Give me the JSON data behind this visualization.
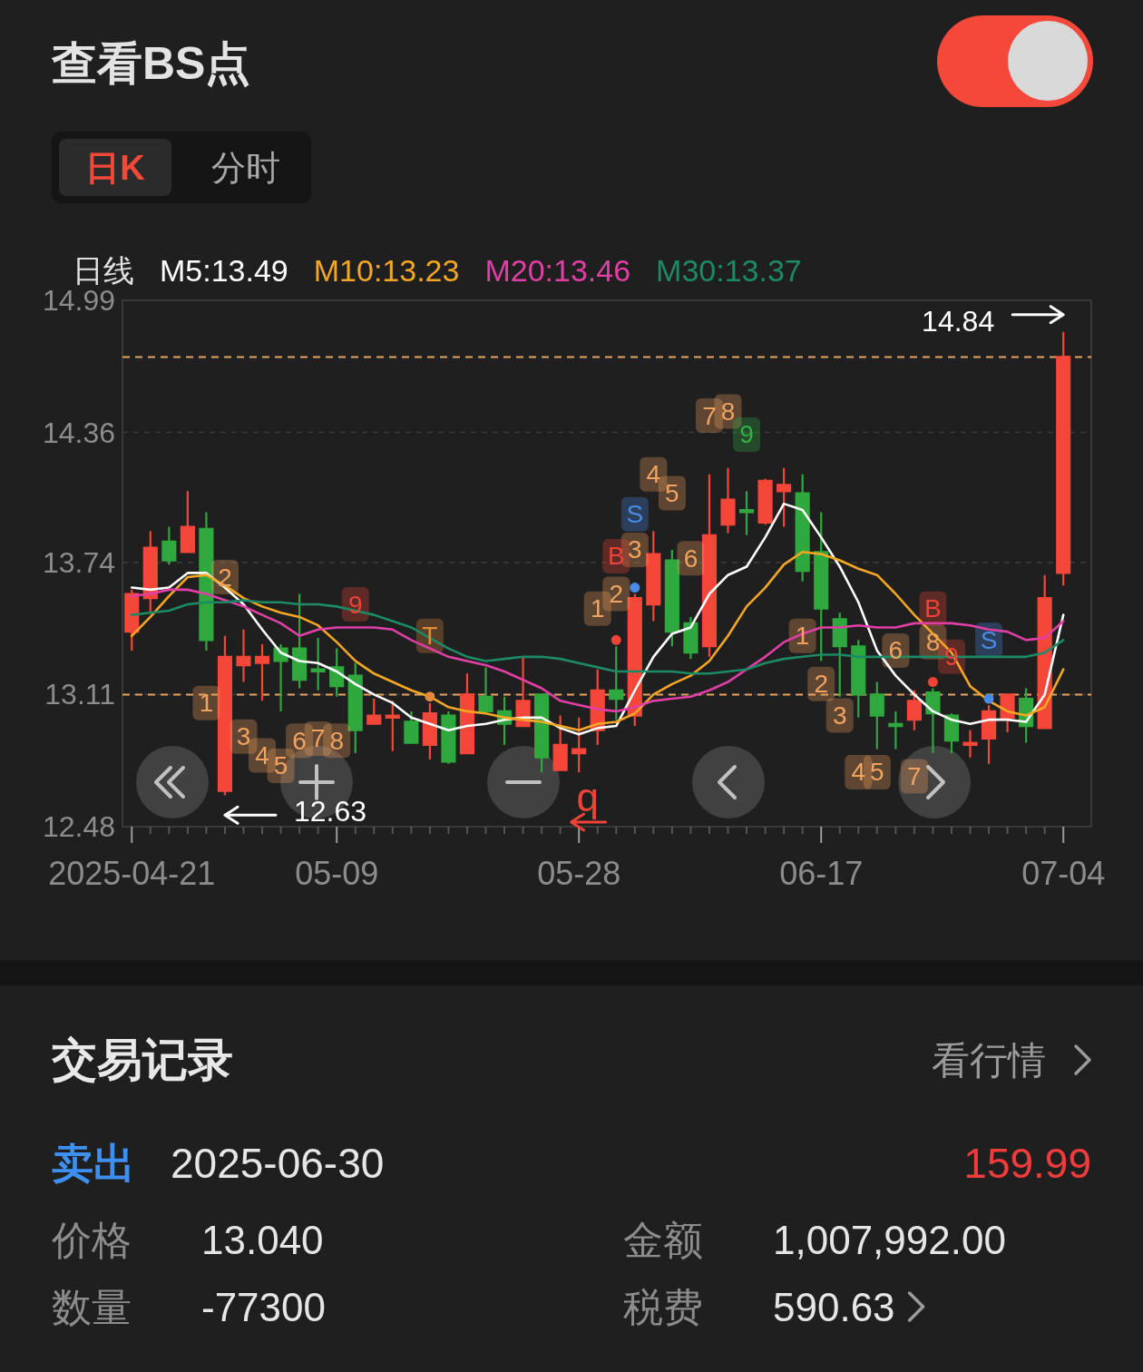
{
  "chart_data": [
    {
      "type": "other",
      "title": "查看BS点",
      "annotations": [
        "日K",
        "分时"
      ]
    },
    {
      "type": "candlestick",
      "legend_title": "日线",
      "legend": "top left",
      "grid": "y",
      "categories": [
        "2025-04-21",
        null,
        null,
        null,
        null,
        null,
        null,
        null,
        null,
        null,
        null,
        "05-09",
        null,
        null,
        null,
        null,
        null,
        null,
        null,
        null,
        null,
        null,
        null,
        null,
        "05-28",
        null,
        null,
        null,
        null,
        null,
        null,
        null,
        null,
        null,
        null,
        null,
        null,
        "06-17",
        null,
        null,
        null,
        null,
        null,
        null,
        null,
        null,
        null,
        null,
        null,
        null,
        "07-04"
      ],
      "ylim": [
        12.48,
        14.99
      ],
      "yticks": [
        12.48,
        13.11,
        13.74,
        14.36,
        14.99
      ],
      "ohlc": [
        [
          13.41,
          13.61,
          13.32,
          13.59
        ],
        [
          13.57,
          13.89,
          13.5,
          13.81
        ],
        [
          13.84,
          13.91,
          13.73,
          13.75
        ],
        [
          13.79,
          14.08,
          13.79,
          13.91
        ],
        [
          13.9,
          13.98,
          13.32,
          13.37
        ],
        [
          12.65,
          13.39,
          12.63,
          13.29
        ],
        [
          13.25,
          13.42,
          13.17,
          13.29
        ],
        [
          13.26,
          13.35,
          13.08,
          13.29
        ],
        [
          13.33,
          13.35,
          13.03,
          13.27
        ],
        [
          13.33,
          13.59,
          13.14,
          13.18
        ],
        [
          13.23,
          13.38,
          13.13,
          13.22
        ],
        [
          13.24,
          13.33,
          13.1,
          13.15
        ],
        [
          13.2,
          13.26,
          12.83,
          12.94
        ],
        [
          12.97,
          13.09,
          12.97,
          13.01
        ],
        [
          13.0,
          13.08,
          12.84,
          13.01
        ],
        [
          12.98,
          13.03,
          12.88,
          12.88
        ],
        [
          12.87,
          13.07,
          12.8,
          13.02
        ],
        [
          13.01,
          13.03,
          12.78,
          12.79
        ],
        [
          12.83,
          13.21,
          12.83,
          13.11
        ],
        [
          13.1,
          13.24,
          13.03,
          13.03
        ],
        [
          13.03,
          13.1,
          12.87,
          12.97
        ],
        [
          12.96,
          13.29,
          12.96,
          13.08
        ],
        [
          13.11,
          13.11,
          12.74,
          12.81
        ],
        [
          12.75,
          13.01,
          12.75,
          12.87
        ],
        [
          12.83,
          13.0,
          12.74,
          12.85
        ],
        [
          12.94,
          13.23,
          12.87,
          13.13
        ],
        [
          13.13,
          13.34,
          12.99,
          13.09
        ],
        [
          13.01,
          13.59,
          12.96,
          13.57
        ],
        [
          13.54,
          13.89,
          13.46,
          13.78
        ],
        [
          13.75,
          13.8,
          13.34,
          13.41
        ],
        [
          13.45,
          13.48,
          13.28,
          13.31
        ],
        [
          13.34,
          14.16,
          13.29,
          13.87
        ],
        [
          13.92,
          14.19,
          13.88,
          14.04
        ],
        [
          13.99,
          14.08,
          13.87,
          13.98
        ],
        [
          13.93,
          14.14,
          13.92,
          14.13
        ],
        [
          14.08,
          14.19,
          13.91,
          14.11
        ],
        [
          14.07,
          14.16,
          13.65,
          13.7
        ],
        [
          13.79,
          13.98,
          13.27,
          13.52
        ],
        [
          13.47,
          13.5,
          13.1,
          13.34
        ],
        [
          13.34,
          13.37,
          13.0,
          13.11
        ],
        [
          13.11,
          13.17,
          12.85,
          13.01
        ],
        [
          12.97,
          13.03,
          12.85,
          12.96
        ],
        [
          12.99,
          13.13,
          12.94,
          13.08
        ],
        [
          13.12,
          13.14,
          12.83,
          13.02
        ],
        [
          13.01,
          13.02,
          12.83,
          12.89
        ],
        [
          12.87,
          12.94,
          12.81,
          12.88
        ],
        [
          12.9,
          13.06,
          12.78,
          13.03
        ],
        [
          13.0,
          13.11,
          12.93,
          13.11
        ],
        [
          13.09,
          13.14,
          12.88,
          12.96
        ],
        [
          12.95,
          13.68,
          12.95,
          13.57
        ],
        [
          13.69,
          14.84,
          13.63,
          14.72
        ]
      ],
      "colors": [
        "#f4473a",
        "#f4473a",
        "#2fa83d",
        "#f4473a",
        "#2fa83d",
        "#f4473a",
        "#f4473a",
        "#f4473a",
        "#2fa83d",
        "#2fa83d",
        "#2fa83d",
        "#2fa83d",
        "#2fa83d",
        "#f4473a",
        "#f4473a",
        "#2fa83d",
        "#f4473a",
        "#2fa83d",
        "#f4473a",
        "#2fa83d",
        "#2fa83d",
        "#f4473a",
        "#2fa83d",
        "#f4473a",
        "#f4473a",
        "#f4473a",
        "#2fa83d",
        "#f4473a",
        "#f4473a",
        "#2fa83d",
        "#2fa83d",
        "#f4473a",
        "#f4473a",
        "#2fa83d",
        "#f4473a",
        "#f4473a",
        "#2fa83d",
        "#2fa83d",
        "#2fa83d",
        "#2fa83d",
        "#2fa83d",
        "#2fa83d",
        "#f4473a",
        "#2fa83d",
        "#2fa83d",
        "#f4473a",
        "#f4473a",
        "#f4473a",
        "#2fa83d",
        "#f4473a",
        "#f4473a"
      ],
      "series": [
        {
          "name": "M5:13.49",
          "color": "#ffffff",
          "type": "line",
          "values": [
            13.62,
            13.61,
            13.62,
            13.69,
            13.69,
            13.62,
            13.54,
            13.42,
            13.31,
            13.27,
            13.26,
            13.22,
            13.16,
            13.11,
            13.07,
            13.0,
            12.97,
            12.94,
            12.96,
            12.97,
            12.99,
            13.0,
            13.0,
            12.95,
            12.92,
            12.95,
            12.96,
            13.13,
            13.29,
            13.4,
            13.43,
            13.59,
            13.68,
            13.72,
            13.86,
            14.02,
            13.99,
            13.86,
            13.72,
            13.55,
            13.32,
            13.2,
            13.11,
            13.03,
            12.99,
            12.97,
            12.99,
            12.99,
            12.98,
            13.11,
            13.49
          ]
        },
        {
          "name": "M10:13.23",
          "color": "#f5a623",
          "type": "line",
          "values": [
            13.39,
            13.48,
            13.58,
            13.67,
            13.68,
            13.63,
            13.57,
            13.53,
            13.5,
            13.48,
            13.44,
            13.36,
            13.27,
            13.21,
            13.17,
            13.13,
            13.1,
            13.05,
            13.03,
            13.02,
            13.0,
            12.99,
            12.98,
            12.96,
            12.94,
            12.97,
            12.98,
            13.02,
            13.11,
            13.16,
            13.2,
            13.27,
            13.39,
            13.53,
            13.62,
            13.73,
            13.79,
            13.78,
            13.75,
            13.71,
            13.68,
            13.59,
            13.49,
            13.4,
            13.31,
            13.15,
            13.08,
            13.03,
            13.01,
            13.05,
            13.23
          ]
        },
        {
          "name": "M20:13.46",
          "color": "#e23fa6",
          "type": "line",
          "values": [
            13.58,
            13.59,
            13.61,
            13.61,
            13.59,
            13.56,
            13.53,
            13.49,
            13.45,
            13.39,
            13.42,
            13.43,
            13.43,
            13.43,
            13.42,
            13.37,
            13.33,
            13.29,
            13.27,
            13.25,
            13.22,
            13.18,
            13.14,
            13.08,
            13.06,
            13.04,
            13.03,
            13.05,
            13.08,
            13.09,
            13.1,
            13.13,
            13.17,
            13.23,
            13.29,
            13.36,
            13.4,
            13.43,
            13.43,
            13.44,
            13.43,
            13.43,
            13.45,
            13.45,
            13.45,
            13.44,
            13.42,
            13.41,
            13.37,
            13.38,
            13.46
          ]
        },
        {
          "name": "M30:13.37",
          "color": "#1c8a66",
          "type": "line",
          "values": [
            13.49,
            13.5,
            13.51,
            13.54,
            13.55,
            13.55,
            13.56,
            13.55,
            13.55,
            13.54,
            13.54,
            13.53,
            13.51,
            13.49,
            13.46,
            13.43,
            13.38,
            13.33,
            13.29,
            13.27,
            13.28,
            13.29,
            13.29,
            13.28,
            13.26,
            13.24,
            13.22,
            13.22,
            13.22,
            13.22,
            13.21,
            13.21,
            13.22,
            13.23,
            13.26,
            13.28,
            13.29,
            13.3,
            13.3,
            13.29,
            13.29,
            13.29,
            13.29,
            13.29,
            13.29,
            13.29,
            13.29,
            13.29,
            13.29,
            13.31,
            13.37
          ]
        },
        {
          "type": "scatter",
          "marker": "circle",
          "values": [
            null,
            null,
            null,
            null,
            null,
            null,
            null,
            null,
            null,
            null,
            null,
            null,
            null,
            null,
            null,
            null,
            13.1,
            null,
            null,
            null,
            null,
            null,
            null,
            null,
            null,
            null,
            13.37,
            13.62,
            null,
            null,
            null,
            null,
            null,
            null,
            null,
            null,
            null,
            null,
            null,
            null,
            null,
            null,
            null,
            13.17,
            null,
            null,
            13.09,
            null,
            null,
            null,
            null
          ],
          "colors": [
            null,
            null,
            null,
            null,
            null,
            null,
            null,
            null,
            null,
            null,
            null,
            null,
            null,
            null,
            null,
            null,
            "#e08a3a",
            null,
            null,
            null,
            null,
            null,
            null,
            null,
            null,
            null,
            "#ee4438",
            "#4a8be6",
            null,
            null,
            null,
            null,
            null,
            null,
            null,
            null,
            null,
            null,
            null,
            null,
            null,
            null,
            null,
            "#ee4438",
            null,
            null,
            "#4a8be6",
            null,
            null,
            null,
            null
          ]
        },
        {
          "type": "scatter",
          "marker": "square",
          "values": [
            null,
            null,
            null,
            null,
            13.07,
            13.67,
            12.91,
            12.82,
            12.77,
            12.89,
            12.9,
            12.89,
            13.54,
            null,
            null,
            null,
            null,
            null,
            null,
            null,
            null,
            null,
            null,
            null,
            null,
            13.52,
            13.59,
            13.8,
            14.16,
            14.07,
            13.76,
            14.44,
            14.46,
            14.35,
            null,
            null,
            13.39,
            13.16,
            13.01,
            12.74,
            12.74,
            13.32,
            12.72,
            13.36,
            13.29,
            null,
            null,
            null,
            null,
            null,
            null
          ],
          "colors": [
            null,
            null,
            null,
            null,
            "#f2a35f",
            "#f2a35f",
            "#f2a35f",
            "#f2a35f",
            "#f2a35f",
            "#f2a35f",
            "#f2a35f",
            "#f2a35f",
            "#ee4438",
            null,
            null,
            null,
            null,
            null,
            null,
            null,
            null,
            null,
            null,
            null,
            null,
            "#f2a35f",
            "#f2a35f",
            "#f2a35f",
            "#f2a35f",
            "#f2a35f",
            "#f2a35f",
            "#f2a35f",
            "#f2a35f",
            "#33b049",
            null,
            null,
            "#f2a35f",
            "#f2a35f",
            "#f2a35f",
            "#f2a35f",
            "#f2a35f",
            "#f2a35f",
            "#f2a35f",
            "#f2a35f",
            "#ee4438",
            null,
            null,
            null,
            null,
            null,
            null
          ]
        },
        {
          "type": "scatter",
          "marker": "square",
          "values": [
            null,
            null,
            null,
            null,
            null,
            null,
            null,
            null,
            null,
            null,
            null,
            null,
            null,
            null,
            null,
            null,
            13.39,
            null,
            null,
            null,
            null,
            null,
            null,
            null,
            null,
            null,
            13.77,
            13.97,
            null,
            null,
            null,
            null,
            null,
            null,
            null,
            null,
            null,
            null,
            null,
            null,
            null,
            null,
            null,
            13.52,
            null,
            null,
            13.37,
            null,
            null,
            null,
            null
          ],
          "colors": [
            null,
            null,
            null,
            null,
            null,
            null,
            null,
            null,
            null,
            null,
            null,
            null,
            null,
            null,
            null,
            null,
            "#e08a3a",
            null,
            null,
            null,
            null,
            null,
            null,
            null,
            null,
            null,
            "#ee4438",
            "#4a8be6",
            null,
            null,
            null,
            null,
            null,
            null,
            null,
            null,
            null,
            null,
            null,
            null,
            null,
            null,
            null,
            "#ee4438",
            null,
            null,
            "#4a8be6",
            null,
            null,
            null,
            null
          ]
        }
      ],
      "ref_lines": [
        {
          "axis": "y",
          "value": 14.72,
          "color": "#e3a463",
          "line_style": "dashed"
        },
        {
          "axis": "y",
          "value": 13.11,
          "color": "#e3a463",
          "line_style": "dashed"
        }
      ],
      "annotations": [
        "1",
        "2",
        "3",
        "4",
        "5",
        "6",
        "7",
        "8",
        "9",
        "1",
        "2",
        "3",
        "4",
        "5",
        "6",
        "7",
        "8",
        "9",
        "1",
        "2",
        "3",
        "4",
        "5",
        "6",
        "7",
        "8",
        "9",
        "T",
        "B",
        "S",
        "B",
        "S",
        "12.63",
        "q",
        {
          "text": "14.84",
          "x": "07-04",
          "y": 14.84
        }
      ]
    },
    {
      "type": "other",
      "title": "交易记录",
      "annotations": [
        "看行情",
        "卖出",
        "2025-06-30",
        "159.99",
        "价格",
        "13.040",
        "金额",
        "1,007,992.00",
        "数量",
        "-77300",
        "税费",
        "590.63"
      ]
    }
  ]
}
